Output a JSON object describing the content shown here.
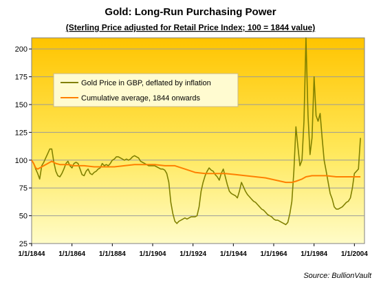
{
  "chart_data": {
    "type": "line",
    "title": "Gold: Long-Run Purchasing Power",
    "subtitle": "(Sterling Price adjusted for Retail Price Index; 100 = 1844 value)",
    "source": "Source:  BullionVault",
    "y_ticks": [
      "25",
      "50",
      "75",
      "100",
      "125",
      "150",
      "175",
      "200"
    ],
    "x_ticks": [
      "1/1/1844",
      "1/1/1864",
      "1/1/1884",
      "1/1/1904",
      "1/1/1924",
      "1/1/1944",
      "1/1/1964",
      "1/1/1984",
      "1/1/2004"
    ],
    "ylim": [
      25,
      210
    ],
    "xlim": [
      1844,
      2009
    ],
    "grid": true,
    "legend_position": "top-left",
    "series": [
      {
        "name": "Gold Price in GBP, deflated by inflation",
        "color": "#808000",
        "x": [
          1844,
          1845,
          1846,
          1847,
          1848,
          1849,
          1850,
          1851,
          1852,
          1853,
          1854,
          1855,
          1856,
          1857,
          1858,
          1859,
          1860,
          1861,
          1862,
          1863,
          1864,
          1865,
          1866,
          1867,
          1868,
          1869,
          1870,
          1871,
          1872,
          1873,
          1874,
          1875,
          1876,
          1877,
          1878,
          1879,
          1880,
          1881,
          1882,
          1883,
          1884,
          1885,
          1886,
          1887,
          1888,
          1889,
          1890,
          1891,
          1892,
          1893,
          1894,
          1895,
          1896,
          1897,
          1898,
          1899,
          1900,
          1901,
          1902,
          1903,
          1904,
          1905,
          1906,
          1907,
          1908,
          1909,
          1910,
          1911,
          1912,
          1913,
          1914,
          1915,
          1916,
          1917,
          1918,
          1919,
          1920,
          1921,
          1922,
          1923,
          1924,
          1925,
          1926,
          1927,
          1928,
          1929,
          1930,
          1931,
          1932,
          1933,
          1934,
          1935,
          1936,
          1937,
          1938,
          1939,
          1940,
          1941,
          1942,
          1943,
          1944,
          1945,
          1946,
          1947,
          1948,
          1949,
          1950,
          1951,
          1952,
          1953,
          1954,
          1955,
          1956,
          1957,
          1958,
          1959,
          1960,
          1961,
          1962,
          1963,
          1964,
          1965,
          1966,
          1967,
          1968,
          1969,
          1970,
          1971,
          1972,
          1973,
          1974,
          1975,
          1976,
          1977,
          1978,
          1979,
          1980,
          1981,
          1982,
          1983,
          1984,
          1985,
          1986,
          1987,
          1988,
          1989,
          1990,
          1991,
          1992,
          1993,
          1994,
          1995,
          1996,
          1997,
          1998,
          1999,
          2000,
          2001,
          2002,
          2003,
          2004,
          2005,
          2006,
          2007
        ],
        "values": [
          100,
          97,
          92,
          88,
          83,
          95,
          98,
          102,
          106,
          110,
          110,
          98,
          90,
          86,
          85,
          88,
          92,
          97,
          99,
          95,
          93,
          97,
          98,
          97,
          92,
          87,
          86,
          90,
          92,
          88,
          87,
          89,
          90,
          92,
          93,
          97,
          95,
          96,
          95,
          97,
          100,
          101,
          103,
          103,
          102,
          101,
          100,
          101,
          100,
          101,
          103,
          104,
          103,
          102,
          99,
          98,
          97,
          96,
          95,
          95,
          95,
          95,
          94,
          93,
          92,
          92,
          91,
          88,
          80,
          62,
          52,
          45,
          43,
          45,
          46,
          47,
          48,
          47,
          48,
          49,
          49,
          49,
          50,
          58,
          72,
          80,
          86,
          90,
          93,
          91,
          90,
          87,
          85,
          82,
          88,
          92,
          85,
          78,
          72,
          70,
          69,
          68,
          66,
          72,
          80,
          76,
          72,
          69,
          67,
          65,
          63,
          62,
          60,
          58,
          56,
          55,
          53,
          51,
          50,
          49,
          47,
          46,
          46,
          45,
          44,
          43,
          42,
          44,
          52,
          63,
          90,
          130,
          112,
          95,
          100,
          135,
          210,
          140,
          105,
          120,
          175,
          140,
          135,
          142,
          120,
          100,
          90,
          80,
          70,
          65,
          58,
          56,
          56,
          57,
          58,
          60,
          62,
          63,
          66,
          75,
          88,
          90,
          92,
          120
        ]
      },
      {
        "name": "Cumulative average, 1844 onwards",
        "color": "#ff7f00",
        "x": [
          1844,
          1845,
          1846,
          1847,
          1848,
          1850,
          1852,
          1854,
          1856,
          1858,
          1860,
          1862,
          1865,
          1870,
          1875,
          1880,
          1885,
          1890,
          1895,
          1900,
          1905,
          1910,
          1915,
          1920,
          1925,
          1930,
          1935,
          1940,
          1945,
          1950,
          1955,
          1960,
          1965,
          1970,
          1973,
          1975,
          1978,
          1980,
          1983,
          1985,
          1990,
          1995,
          2000,
          2005,
          2007
        ],
        "values": [
          100,
          97,
          93,
          92,
          93,
          95,
          97,
          99,
          97,
          96,
          96,
          96,
          95,
          95,
          94,
          94,
          94,
          95,
          96,
          96,
          96,
          95,
          95,
          92,
          89,
          88,
          88,
          88,
          87,
          86,
          85,
          84,
          82,
          80,
          80,
          81,
          83,
          85,
          86,
          86,
          86,
          85,
          85,
          85,
          85
        ]
      }
    ]
  }
}
